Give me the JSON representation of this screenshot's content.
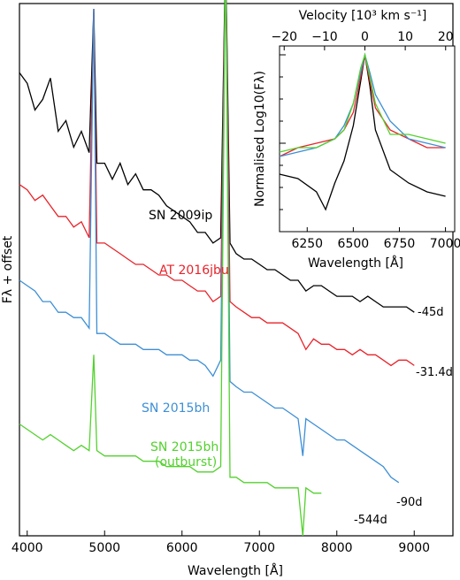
{
  "chart_data": [
    {
      "type": "line",
      "xlabel": "Wavelength [Å]",
      "ylabel": "Fλ + offset",
      "xlim": [
        3900,
        9500
      ],
      "y_ticks_shown": false,
      "x_ticks": [
        4000,
        5000,
        6000,
        7000,
        8000,
        9000
      ],
      "grid": false,
      "series": [
        {
          "name": "SN 2009ip",
          "epoch": "-45d",
          "color": "#000000",
          "points": [
            [
              3900,
              0.87
            ],
            [
              4000,
              0.85
            ],
            [
              4100,
              0.8
            ],
            [
              4200,
              0.82
            ],
            [
              4300,
              0.86
            ],
            [
              4400,
              0.76
            ],
            [
              4500,
              0.78
            ],
            [
              4600,
              0.73
            ],
            [
              4700,
              0.76
            ],
            [
              4800,
              0.72
            ],
            [
              4860,
              0.99
            ],
            [
              4900,
              0.7
            ],
            [
              5000,
              0.7
            ],
            [
              5100,
              0.67
            ],
            [
              5200,
              0.7
            ],
            [
              5300,
              0.66
            ],
            [
              5400,
              0.68
            ],
            [
              5500,
              0.65
            ],
            [
              5600,
              0.65
            ],
            [
              5700,
              0.64
            ],
            [
              5800,
              0.62
            ],
            [
              5900,
              0.61
            ],
            [
              6000,
              0.6
            ],
            [
              6100,
              0.59
            ],
            [
              6200,
              0.57
            ],
            [
              6300,
              0.57
            ],
            [
              6400,
              0.55
            ],
            [
              6500,
              0.56
            ],
            [
              6563,
              1.1
            ],
            [
              6620,
              0.55
            ],
            [
              6700,
              0.53
            ],
            [
              6800,
              0.52
            ],
            [
              6900,
              0.52
            ],
            [
              7000,
              0.51
            ],
            [
              7100,
              0.5
            ],
            [
              7200,
              0.5
            ],
            [
              7300,
              0.49
            ],
            [
              7400,
              0.48
            ],
            [
              7500,
              0.48
            ],
            [
              7600,
              0.46
            ],
            [
              7700,
              0.47
            ],
            [
              7800,
              0.47
            ],
            [
              7900,
              0.46
            ],
            [
              8000,
              0.45
            ],
            [
              8100,
              0.45
            ],
            [
              8200,
              0.45
            ],
            [
              8300,
              0.44
            ],
            [
              8400,
              0.45
            ],
            [
              8500,
              0.44
            ],
            [
              8600,
              0.43
            ],
            [
              8700,
              0.43
            ],
            [
              8800,
              0.43
            ],
            [
              8900,
              0.43
            ],
            [
              9000,
              0.42
            ]
          ]
        },
        {
          "name": "AT 2016jbu",
          "epoch": "-31.4d",
          "color": "#e8232a",
          "points": [
            [
              3900,
              0.66
            ],
            [
              4000,
              0.65
            ],
            [
              4100,
              0.63
            ],
            [
              4200,
              0.64
            ],
            [
              4300,
              0.62
            ],
            [
              4400,
              0.6
            ],
            [
              4500,
              0.6
            ],
            [
              4600,
              0.58
            ],
            [
              4700,
              0.59
            ],
            [
              4800,
              0.56
            ],
            [
              4860,
              0.99
            ],
            [
              4900,
              0.55
            ],
            [
              5000,
              0.55
            ],
            [
              5100,
              0.54
            ],
            [
              5200,
              0.53
            ],
            [
              5300,
              0.52
            ],
            [
              5400,
              0.51
            ],
            [
              5500,
              0.51
            ],
            [
              5600,
              0.5
            ],
            [
              5700,
              0.49
            ],
            [
              5800,
              0.49
            ],
            [
              5900,
              0.48
            ],
            [
              6000,
              0.48
            ],
            [
              6100,
              0.47
            ],
            [
              6200,
              0.46
            ],
            [
              6300,
              0.46
            ],
            [
              6400,
              0.44
            ],
            [
              6500,
              0.45
            ],
            [
              6563,
              1.1
            ],
            [
              6620,
              0.44
            ],
            [
              6700,
              0.43
            ],
            [
              6800,
              0.42
            ],
            [
              6900,
              0.41
            ],
            [
              7000,
              0.41
            ],
            [
              7100,
              0.4
            ],
            [
              7200,
              0.4
            ],
            [
              7300,
              0.4
            ],
            [
              7400,
              0.39
            ],
            [
              7500,
              0.38
            ],
            [
              7600,
              0.35
            ],
            [
              7700,
              0.37
            ],
            [
              7800,
              0.36
            ],
            [
              7900,
              0.36
            ],
            [
              8000,
              0.35
            ],
            [
              8100,
              0.35
            ],
            [
              8200,
              0.34
            ],
            [
              8300,
              0.35
            ],
            [
              8400,
              0.34
            ],
            [
              8500,
              0.34
            ],
            [
              8600,
              0.33
            ],
            [
              8700,
              0.32
            ],
            [
              8800,
              0.33
            ],
            [
              8900,
              0.33
            ],
            [
              9000,
              0.32
            ]
          ]
        },
        {
          "name": "SN 2015bh",
          "epoch": "-90d",
          "color": "#3d8fd6",
          "points": [
            [
              3900,
              0.48
            ],
            [
              4000,
              0.47
            ],
            [
              4100,
              0.46
            ],
            [
              4200,
              0.44
            ],
            [
              4300,
              0.44
            ],
            [
              4400,
              0.42
            ],
            [
              4500,
              0.42
            ],
            [
              4600,
              0.41
            ],
            [
              4700,
              0.41
            ],
            [
              4800,
              0.39
            ],
            [
              4860,
              0.99
            ],
            [
              4900,
              0.38
            ],
            [
              5000,
              0.38
            ],
            [
              5100,
              0.37
            ],
            [
              5200,
              0.36
            ],
            [
              5300,
              0.36
            ],
            [
              5400,
              0.36
            ],
            [
              5500,
              0.35
            ],
            [
              5600,
              0.35
            ],
            [
              5700,
              0.35
            ],
            [
              5800,
              0.34
            ],
            [
              5900,
              0.34
            ],
            [
              6000,
              0.34
            ],
            [
              6100,
              0.33
            ],
            [
              6200,
              0.33
            ],
            [
              6300,
              0.32
            ],
            [
              6400,
              0.3
            ],
            [
              6500,
              0.33
            ],
            [
              6563,
              1.1
            ],
            [
              6620,
              0.29
            ],
            [
              6700,
              0.28
            ],
            [
              6800,
              0.27
            ],
            [
              6900,
              0.27
            ],
            [
              7000,
              0.26
            ],
            [
              7100,
              0.25
            ],
            [
              7200,
              0.24
            ],
            [
              7300,
              0.24
            ],
            [
              7400,
              0.23
            ],
            [
              7500,
              0.22
            ],
            [
              7560,
              0.15
            ],
            [
              7600,
              0.22
            ],
            [
              7700,
              0.21
            ],
            [
              7800,
              0.2
            ],
            [
              7900,
              0.19
            ],
            [
              8000,
              0.18
            ],
            [
              8100,
              0.18
            ],
            [
              8200,
              0.17
            ],
            [
              8300,
              0.16
            ],
            [
              8400,
              0.15
            ],
            [
              8500,
              0.14
            ],
            [
              8600,
              0.13
            ],
            [
              8700,
              0.11
            ],
            [
              8800,
              0.1
            ]
          ]
        },
        {
          "name": "SN 2015bh\n(outburst)",
          "epoch": "-544d",
          "color": "#53d12e",
          "points": [
            [
              3900,
              0.21
            ],
            [
              4000,
              0.2
            ],
            [
              4100,
              0.19
            ],
            [
              4200,
              0.18
            ],
            [
              4300,
              0.19
            ],
            [
              4400,
              0.18
            ],
            [
              4500,
              0.17
            ],
            [
              4600,
              0.16
            ],
            [
              4700,
              0.17
            ],
            [
              4800,
              0.16
            ],
            [
              4860,
              0.34
            ],
            [
              4900,
              0.16
            ],
            [
              5000,
              0.15
            ],
            [
              5100,
              0.15
            ],
            [
              5200,
              0.15
            ],
            [
              5300,
              0.15
            ],
            [
              5400,
              0.15
            ],
            [
              5500,
              0.14
            ],
            [
              5600,
              0.14
            ],
            [
              5700,
              0.14
            ],
            [
              5800,
              0.13
            ],
            [
              5900,
              0.13
            ],
            [
              6000,
              0.13
            ],
            [
              6100,
              0.13
            ],
            [
              6200,
              0.12
            ],
            [
              6300,
              0.12
            ],
            [
              6400,
              0.12
            ],
            [
              6500,
              0.13
            ],
            [
              6563,
              1.1
            ],
            [
              6620,
              0.11
            ],
            [
              6700,
              0.11
            ],
            [
              6800,
              0.1
            ],
            [
              6900,
              0.1
            ],
            [
              7000,
              0.1
            ],
            [
              7100,
              0.1
            ],
            [
              7200,
              0.09
            ],
            [
              7300,
              0.09
            ],
            [
              7400,
              0.09
            ],
            [
              7500,
              0.09
            ],
            [
              7560,
              0.0
            ],
            [
              7600,
              0.09
            ],
            [
              7700,
              0.08
            ],
            [
              7800,
              0.08
            ]
          ]
        }
      ]
    },
    {
      "type": "line",
      "xlabel": "Wavelength [Å]",
      "ylabel": "Normalised Log10(Fλ)",
      "x2label": "Velocity [10^3 km s^-1]",
      "xlim": [
        6100,
        7050
      ],
      "x_ticks": [
        6250,
        6500,
        6750,
        7000
      ],
      "x2_ticks": [
        -20,
        -10,
        0,
        10,
        20
      ],
      "ylim": [
        -2.0,
        0.1
      ],
      "log_scale_y": true,
      "grid": false,
      "series": [
        {
          "color": "#000000",
          "points": [
            [
              6100,
              -1.35
            ],
            [
              6200,
              -1.4
            ],
            [
              6300,
              -1.55
            ],
            [
              6350,
              -1.75
            ],
            [
              6400,
              -1.45
            ],
            [
              6450,
              -1.2
            ],
            [
              6500,
              -0.8
            ],
            [
              6540,
              -0.3
            ],
            [
              6563,
              0.0
            ],
            [
              6590,
              -0.35
            ],
            [
              6620,
              -0.85
            ],
            [
              6700,
              -1.3
            ],
            [
              6800,
              -1.45
            ],
            [
              6900,
              -1.55
            ],
            [
              7000,
              -1.6
            ]
          ]
        },
        {
          "color": "#e8232a",
          "points": [
            [
              6100,
              -1.15
            ],
            [
              6200,
              -1.05
            ],
            [
              6300,
              -1.0
            ],
            [
              6400,
              -0.95
            ],
            [
              6450,
              -0.85
            ],
            [
              6500,
              -0.65
            ],
            [
              6540,
              -0.25
            ],
            [
              6563,
              0.0
            ],
            [
              6590,
              -0.3
            ],
            [
              6620,
              -0.6
            ],
            [
              6700,
              -0.85
            ],
            [
              6800,
              -0.95
            ],
            [
              6900,
              -1.05
            ],
            [
              7000,
              -1.05
            ]
          ]
        },
        {
          "color": "#3d8fd6",
          "points": [
            [
              6100,
              -1.15
            ],
            [
              6200,
              -1.1
            ],
            [
              6300,
              -1.05
            ],
            [
              6400,
              -0.95
            ],
            [
              6450,
              -0.8
            ],
            [
              6500,
              -0.55
            ],
            [
              6540,
              -0.2
            ],
            [
              6563,
              0.0
            ],
            [
              6590,
              -0.2
            ],
            [
              6620,
              -0.45
            ],
            [
              6700,
              -0.75
            ],
            [
              6800,
              -0.95
            ],
            [
              6900,
              -1.0
            ],
            [
              7000,
              -1.05
            ]
          ]
        },
        {
          "color": "#53d12e",
          "points": [
            [
              6100,
              -1.1
            ],
            [
              6200,
              -1.05
            ],
            [
              6300,
              -1.05
            ],
            [
              6400,
              -0.95
            ],
            [
              6450,
              -0.85
            ],
            [
              6500,
              -0.55
            ],
            [
              6540,
              -0.15
            ],
            [
              6563,
              0.0
            ],
            [
              6590,
              -0.25
            ],
            [
              6620,
              -0.55
            ],
            [
              6700,
              -0.9
            ],
            [
              6800,
              -0.9
            ],
            [
              6900,
              -0.95
            ],
            [
              7000,
              -1.0
            ]
          ]
        }
      ]
    }
  ],
  "labels": {
    "xlabel": "Wavelength [Å]",
    "ylabel": "Fλ + offset",
    "inset_xlabel": "Wavelength [Å]",
    "inset_ylabel": "Normalised Log10(Fλ)",
    "inset_toplabel": "Velocity [10³ km s⁻¹]",
    "series_names": [
      "SN 2009ip",
      "AT 2016jbu",
      "SN 2015bh",
      "SN 2015bh",
      "(outburst)"
    ],
    "epochs": [
      "-45d",
      "-31.4d",
      "-90d",
      "-544d"
    ]
  }
}
